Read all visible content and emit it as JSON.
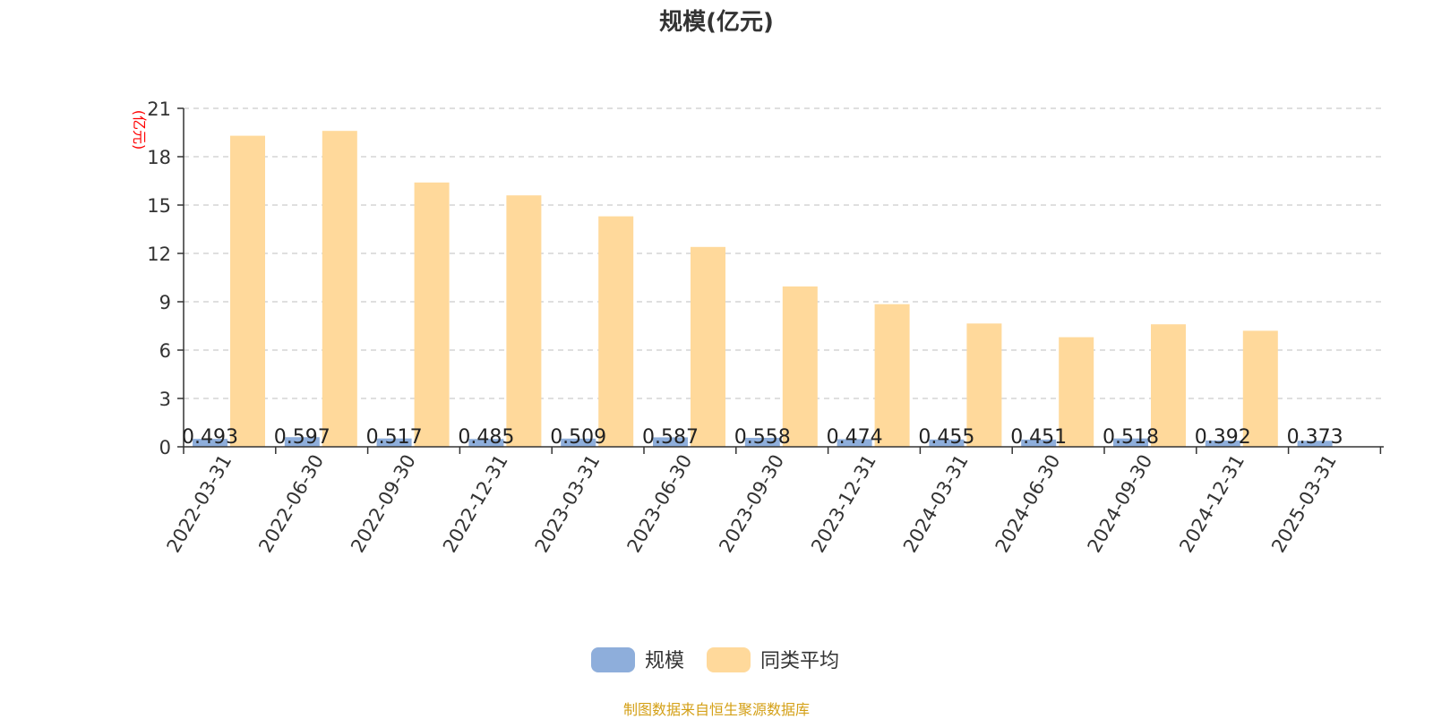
{
  "chart_data": {
    "type": "bar",
    "title": "规模(亿元)",
    "ylabel": "(亿元)",
    "xlabel": "",
    "categories": [
      "2022-03-31",
      "2022-06-30",
      "2022-09-30",
      "2022-12-31",
      "2023-03-31",
      "2023-06-30",
      "2023-09-30",
      "2023-12-31",
      "2024-03-31",
      "2024-06-30",
      "2024-09-30",
      "2024-12-31",
      "2025-03-31"
    ],
    "series": [
      {
        "name": "规模",
        "color": "#8eaedb",
        "values": [
          0.493,
          0.597,
          0.517,
          0.485,
          0.509,
          0.587,
          0.558,
          0.474,
          0.455,
          0.451,
          0.518,
          0.392,
          0.373
        ],
        "labels": [
          "0.493",
          "0.597",
          "0.517",
          "0.485",
          "0.509",
          "0.587",
          "0.558",
          "0.474",
          "0.455",
          "0.451",
          "0.518",
          "0.392",
          "0.373"
        ]
      },
      {
        "name": "同类平均",
        "color": "#ffd99b",
        "values": [
          19.3,
          19.6,
          16.4,
          15.6,
          14.3,
          12.4,
          9.95,
          8.85,
          7.65,
          6.8,
          7.6,
          7.2,
          null
        ]
      }
    ],
    "ylim": [
      0,
      21
    ],
    "yticks": [
      "0",
      "3",
      "6",
      "9",
      "12",
      "15",
      "18",
      "21"
    ],
    "grid": true,
    "legend_position": "bottom"
  },
  "footer": "制图数据来自恒生聚源数据库"
}
